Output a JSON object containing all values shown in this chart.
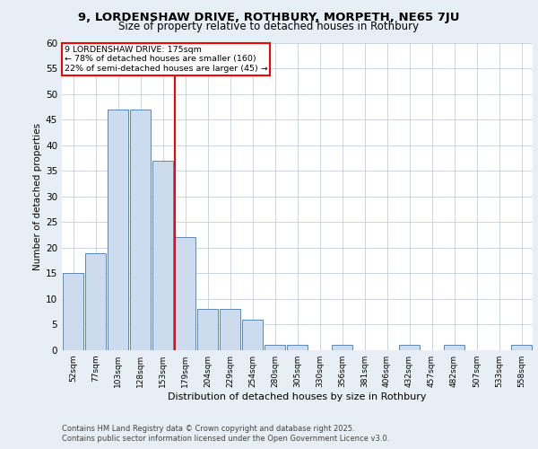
{
  "title1": "9, LORDENSHAW DRIVE, ROTHBURY, MORPETH, NE65 7JU",
  "title2": "Size of property relative to detached houses in Rothbury",
  "xlabel": "Distribution of detached houses by size in Rothbury",
  "ylabel": "Number of detached properties",
  "bar_labels": [
    "52sqm",
    "77sqm",
    "103sqm",
    "128sqm",
    "153sqm",
    "179sqm",
    "204sqm",
    "229sqm",
    "254sqm",
    "280sqm",
    "305sqm",
    "330sqm",
    "356sqm",
    "381sqm",
    "406sqm",
    "432sqm",
    "457sqm",
    "482sqm",
    "507sqm",
    "533sqm",
    "558sqm"
  ],
  "bar_values": [
    15,
    19,
    47,
    47,
    37,
    22,
    8,
    8,
    6,
    1,
    1,
    0,
    1,
    0,
    0,
    1,
    0,
    1,
    0,
    0,
    1
  ],
  "bar_color": "#ccdcee",
  "bar_edge_color": "#5588bb",
  "vline_x_index": 5,
  "vline_color": "red",
  "annotation_title": "9 LORDENSHAW DRIVE: 175sqm",
  "annotation_line2": "← 78% of detached houses are smaller (160)",
  "annotation_line3": "22% of semi-detached houses are larger (45) →",
  "annotation_box_color": "red",
  "annotation_fill": "white",
  "ylim": [
    0,
    60
  ],
  "yticks": [
    0,
    5,
    10,
    15,
    20,
    25,
    30,
    35,
    40,
    45,
    50,
    55,
    60
  ],
  "footnote1": "Contains HM Land Registry data © Crown copyright and database right 2025.",
  "footnote2": "Contains public sector information licensed under the Open Government Licence v3.0.",
  "bg_color": "#e8eef5",
  "plot_bg_color": "#ffffff",
  "grid_color": "#c0cfe0"
}
